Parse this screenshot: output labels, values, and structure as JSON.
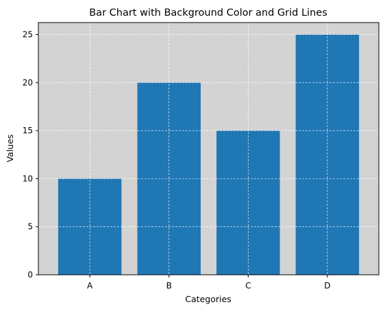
{
  "chart_data": {
    "type": "bar",
    "title": "Bar Chart with Background Color and Grid Lines",
    "xlabel": "Categories",
    "ylabel": "Values",
    "categories": [
      "A",
      "B",
      "C",
      "D"
    ],
    "values": [
      10,
      20,
      15,
      25
    ],
    "ylim": [
      0,
      26.25
    ],
    "yticks": [
      0,
      5,
      10,
      15,
      20,
      25
    ],
    "grid": true,
    "grid_style": "dashed",
    "colors": {
      "bar": "#1f77b4",
      "plot_background": "#d3d3d3",
      "grid": "#ffffff",
      "axes": "#000000"
    }
  }
}
